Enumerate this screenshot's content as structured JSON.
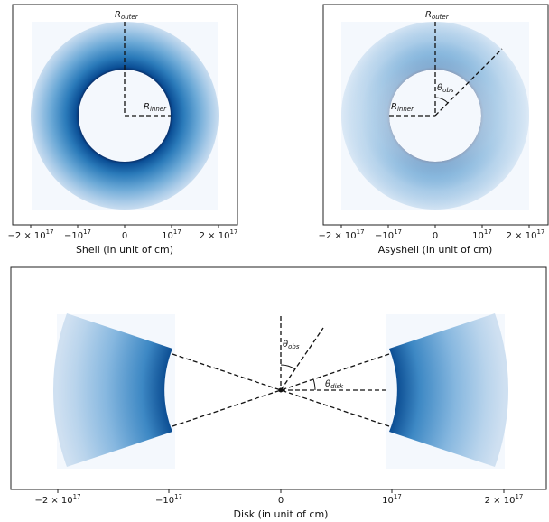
{
  "panels": [
    {
      "id": "shell",
      "xlabel": "Shell (in unit of cm)",
      "xticks": [
        {
          "base": "−2 × 10",
          "exp": "17"
        },
        {
          "base": "−10",
          "exp": "17"
        },
        {
          "base": "0",
          "exp": ""
        },
        {
          "base": "10",
          "exp": "17"
        },
        {
          "base": "2 × 10",
          "exp": "17"
        }
      ],
      "labels": {
        "r_outer": {
          "base": "R",
          "sub": "outer"
        },
        "r_inner": {
          "base": "R",
          "sub": "inner"
        }
      }
    },
    {
      "id": "asyshell",
      "xlabel": "Asyshell (in unit of cm)",
      "xticks": [
        {
          "base": "−2 × 10",
          "exp": "17"
        },
        {
          "base": "−10",
          "exp": "17"
        },
        {
          "base": "0",
          "exp": ""
        },
        {
          "base": "10",
          "exp": "17"
        },
        {
          "base": "2 × 10",
          "exp": "17"
        }
      ],
      "labels": {
        "r_outer": {
          "base": "R",
          "sub": "outer"
        },
        "r_inner": {
          "base": "R",
          "sub": "inner"
        },
        "theta_obs": {
          "base": "θ",
          "sub": "obs"
        }
      }
    },
    {
      "id": "disk",
      "xlabel": "Disk (in unit of cm)",
      "xticks": [
        {
          "base": "−2 × 10",
          "exp": "17"
        },
        {
          "base": "−10",
          "exp": "17"
        },
        {
          "base": "0",
          "exp": ""
        },
        {
          "base": "10",
          "exp": "17"
        },
        {
          "base": "2 × 10",
          "exp": "17"
        }
      ],
      "labels": {
        "theta_obs": {
          "base": "θ",
          "sub": "obs"
        },
        "theta_disk": {
          "base": "θ",
          "sub": "disk"
        }
      }
    }
  ],
  "colors": {
    "background_tint": "#f4f8fd",
    "dense": "#08306b",
    "mid": "#2171b5",
    "light": "#c6dbef",
    "frame": "#222222"
  }
}
